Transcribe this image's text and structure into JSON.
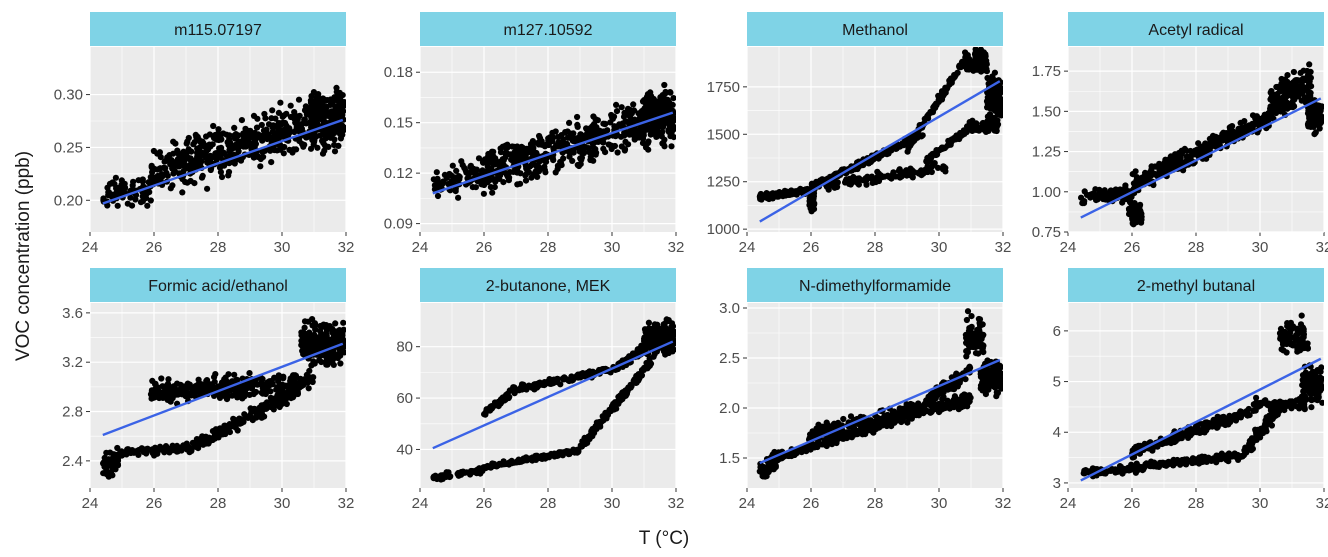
{
  "figure": {
    "ylabel": "VOC concentration (ppb)",
    "xlabel": "T (°C)"
  },
  "colors": {
    "strip": "#7fd3e6",
    "panel_bg": "#ebebeb",
    "grid": "#ffffff",
    "points": "#000000",
    "fit_line": "#3b63e6"
  },
  "chart_data": [
    {
      "type": "scatter",
      "title": "m115.07197",
      "xlim": [
        24,
        32
      ],
      "ylim": [
        0.17,
        0.345
      ],
      "xticks": [
        24,
        26,
        28,
        30,
        32
      ],
      "yticks": [
        0.2,
        0.25,
        0.3
      ],
      "tick_decimals": 2,
      "trend": [
        [
          24.4,
          0.197
        ],
        [
          31.9,
          0.276
        ]
      ],
      "regimes": [
        {
          "x": [
            24.4,
            25.9
          ],
          "slope": 0.006,
          "at_x": 24.4,
          "at_y": 0.203,
          "spread": 0.014,
          "n": 70
        },
        {
          "x": [
            25.9,
            31.0
          ],
          "slope": 0.0095,
          "at_x": 25.9,
          "at_y": 0.225,
          "spread": 0.021,
          "n": 450
        },
        {
          "x": [
            30.9,
            31.95
          ],
          "slope": 0.005,
          "at_x": 30.9,
          "at_y": 0.275,
          "spread": 0.024,
          "n": 230
        }
      ]
    },
    {
      "type": "scatter",
      "title": "m127.10592",
      "xlim": [
        24,
        32
      ],
      "ylim": [
        0.085,
        0.195
      ],
      "xticks": [
        24,
        26,
        28,
        30,
        32
      ],
      "yticks": [
        0.09,
        0.12,
        0.15,
        0.18
      ],
      "tick_decimals": 2,
      "trend": [
        [
          24.4,
          0.108
        ],
        [
          31.9,
          0.156
        ]
      ],
      "regimes": [
        {
          "x": [
            24.4,
            25.9
          ],
          "slope": 0.006,
          "at_x": 24.4,
          "at_y": 0.112,
          "spread": 0.008,
          "n": 70
        },
        {
          "x": [
            25.9,
            31.0
          ],
          "slope": 0.0058,
          "at_x": 25.9,
          "at_y": 0.12,
          "spread": 0.012,
          "n": 450
        },
        {
          "x": [
            30.9,
            31.95
          ],
          "slope": 0.003,
          "at_x": 30.9,
          "at_y": 0.152,
          "spread": 0.014,
          "n": 230
        }
      ]
    },
    {
      "type": "scatter",
      "title": "Methanol",
      "xlim": [
        24,
        32
      ],
      "ylim": [
        985,
        1960
      ],
      "xticks": [
        24,
        26,
        28,
        30,
        32
      ],
      "yticks": [
        1000,
        1250,
        1500,
        1750
      ],
      "tick_decimals": 0,
      "trend": [
        [
          24.4,
          1040
        ],
        [
          31.9,
          1780
        ]
      ],
      "regimes": [
        {
          "x": [
            24.4,
            26.0
          ],
          "slope": 20,
          "at_x": 24.4,
          "at_y": 1170,
          "spread": 12,
          "n": 150
        },
        {
          "x": [
            25.95,
            26.1
          ],
          "slope": 0,
          "at_x": 26.0,
          "at_y": 1150,
          "spread": 45,
          "n": 50
        },
        {
          "x": [
            26.0,
            29.5
          ],
          "slope": 80,
          "at_x": 26.0,
          "at_y": 1220,
          "spread": 15,
          "n": 220
        },
        {
          "x": [
            29.0,
            30.8
          ],
          "slope": 260,
          "at_x": 29.0,
          "at_y": 1420,
          "spread": 20,
          "n": 110
        },
        {
          "x": [
            30.8,
            31.5
          ],
          "slope": 0,
          "at_x": 30.8,
          "at_y": 1880,
          "spread": 50,
          "n": 80
        },
        {
          "x": [
            26.4,
            30.2
          ],
          "slope": 25,
          "at_x": 26.4,
          "at_y": 1230,
          "spread": 25,
          "n": 120
        },
        {
          "x": [
            29.6,
            31.0
          ],
          "slope": 130,
          "at_x": 29.6,
          "at_y": 1360,
          "spread": 15,
          "n": 80
        },
        {
          "x": [
            30.9,
            31.9
          ],
          "slope": 0,
          "at_x": 30.9,
          "at_y": 1540,
          "spread": 25,
          "n": 60
        },
        {
          "x": [
            31.5,
            31.95
          ],
          "slope": 0,
          "at_x": 31.5,
          "at_y": 1680,
          "spread": 110,
          "n": 130
        }
      ]
    },
    {
      "type": "scatter",
      "title": "Acetyl radical",
      "xlim": [
        24,
        32
      ],
      "ylim": [
        0.75,
        1.9
      ],
      "xticks": [
        24,
        26,
        28,
        30,
        32
      ],
      "yticks": [
        0.75,
        1.0,
        1.25,
        1.5,
        1.75
      ],
      "tick_decimals": 2,
      "trend": [
        [
          24.4,
          0.84
        ],
        [
          31.9,
          1.58
        ]
      ],
      "regimes": [
        {
          "x": [
            24.4,
            26.0
          ],
          "slope": 0.02,
          "at_x": 24.4,
          "at_y": 0.96,
          "spread": 0.04,
          "n": 80
        },
        {
          "x": [
            25.9,
            26.3
          ],
          "slope": 0,
          "at_x": 25.9,
          "at_y": 0.88,
          "spread": 0.07,
          "n": 60
        },
        {
          "x": [
            26.0,
            30.3
          ],
          "slope": 0.095,
          "at_x": 26.0,
          "at_y": 1.05,
          "spread": 0.05,
          "n": 350
        },
        {
          "x": [
            30.3,
            31.6
          ],
          "slope": 0.1,
          "at_x": 30.3,
          "at_y": 1.55,
          "spread": 0.09,
          "n": 180
        },
        {
          "x": [
            31.5,
            31.95
          ],
          "slope": 0,
          "at_x": 31.5,
          "at_y": 1.48,
          "spread": 0.09,
          "n": 120
        }
      ]
    },
    {
      "type": "scatter",
      "title": "Formic acid/ethanol",
      "xlim": [
        24,
        32
      ],
      "ylim": [
        2.18,
        3.68
      ],
      "xticks": [
        24,
        26,
        28,
        30,
        32
      ],
      "yticks": [
        2.4,
        2.8,
        3.2,
        3.6
      ],
      "tick_decimals": 1,
      "trend": [
        [
          24.4,
          2.61
        ],
        [
          31.9,
          3.35
        ]
      ],
      "regimes": [
        {
          "x": [
            24.4,
            24.9
          ],
          "slope": 0.1,
          "at_x": 24.4,
          "at_y": 2.36,
          "spread": 0.09,
          "n": 50
        },
        {
          "x": [
            24.9,
            27.0
          ],
          "slope": 0.02,
          "at_x": 24.9,
          "at_y": 2.46,
          "spread": 0.03,
          "n": 70
        },
        {
          "x": [
            27.0,
            30.5
          ],
          "slope": 0.14,
          "at_x": 27.0,
          "at_y": 2.48,
          "spread": 0.05,
          "n": 200
        },
        {
          "x": [
            25.9,
            31.0
          ],
          "slope": 0.02,
          "at_x": 25.9,
          "at_y": 2.95,
          "spread": 0.08,
          "n": 350
        },
        {
          "x": [
            30.6,
            31.95
          ],
          "slope": 0,
          "at_x": 30.6,
          "at_y": 3.35,
          "spread": 0.14,
          "n": 250
        }
      ]
    },
    {
      "type": "scatter",
      "title": "2-butanone, MEK",
      "xlim": [
        24,
        32
      ],
      "ylim": [
        25,
        97
      ],
      "xticks": [
        24,
        26,
        28,
        30,
        32
      ],
      "yticks": [
        40,
        60,
        80
      ],
      "tick_decimals": 0,
      "trend": [
        [
          24.4,
          40.5
        ],
        [
          31.9,
          82
        ]
      ],
      "regimes": [
        {
          "x": [
            24.4,
            26.0
          ],
          "slope": 2,
          "at_x": 24.4,
          "at_y": 29,
          "spread": 1.2,
          "n": 60
        },
        {
          "x": [
            26.0,
            29.0
          ],
          "slope": 2.2,
          "at_x": 26.0,
          "at_y": 33,
          "spread": 0.8,
          "n": 120
        },
        {
          "x": [
            29.0,
            31.3
          ],
          "slope": 15,
          "at_x": 29.0,
          "at_y": 41,
          "spread": 1.5,
          "n": 150
        },
        {
          "x": [
            26.0,
            26.8
          ],
          "slope": 9,
          "at_x": 26.0,
          "at_y": 54,
          "spread": 1.2,
          "n": 50
        },
        {
          "x": [
            26.8,
            30.2
          ],
          "slope": 2.5,
          "at_x": 26.8,
          "at_y": 63,
          "spread": 1.2,
          "n": 140
        },
        {
          "x": [
            30.2,
            31.0
          ],
          "slope": 9,
          "at_x": 30.2,
          "at_y": 72,
          "spread": 1.5,
          "n": 60
        },
        {
          "x": [
            31.0,
            31.95
          ],
          "slope": 0,
          "at_x": 31.0,
          "at_y": 83,
          "spread": 5.5,
          "n": 220
        }
      ]
    },
    {
      "type": "scatter",
      "title": "N-dimethylformamide",
      "xlim": [
        24,
        32
      ],
      "ylim": [
        1.2,
        3.05
      ],
      "xticks": [
        24,
        26,
        28,
        30,
        32
      ],
      "yticks": [
        1.5,
        2.0,
        2.5,
        3.0
      ],
      "tick_decimals": 1,
      "trend": [
        [
          24.4,
          1.45
        ],
        [
          31.9,
          2.48
        ]
      ],
      "regimes": [
        {
          "x": [
            24.4,
            24.9
          ],
          "slope": 0.3,
          "at_x": 24.4,
          "at_y": 1.35,
          "spread": 0.08,
          "n": 50
        },
        {
          "x": [
            24.9,
            28.8
          ],
          "slope": 0.1,
          "at_x": 24.9,
          "at_y": 1.5,
          "spread": 0.04,
          "n": 170
        },
        {
          "x": [
            28.8,
            31.0
          ],
          "slope": 0.22,
          "at_x": 28.8,
          "at_y": 1.9,
          "spread": 0.07,
          "n": 120
        },
        {
          "x": [
            25.9,
            31.0
          ],
          "slope": 0.065,
          "at_x": 25.9,
          "at_y": 1.75,
          "spread": 0.07,
          "n": 250
        },
        {
          "x": [
            30.8,
            31.4
          ],
          "slope": 0,
          "at_x": 30.8,
          "at_y": 2.7,
          "spread": 0.18,
          "n": 80
        },
        {
          "x": [
            31.3,
            31.95
          ],
          "slope": 0,
          "at_x": 31.3,
          "at_y": 2.3,
          "spread": 0.14,
          "n": 150
        }
      ]
    },
    {
      "type": "scatter",
      "title": "2-methyl butanal",
      "xlim": [
        24,
        32
      ],
      "ylim": [
        2.9,
        6.55
      ],
      "xticks": [
        24,
        26,
        28,
        30,
        32
      ],
      "yticks": [
        3,
        4,
        5,
        6
      ],
      "tick_decimals": 0,
      "trend": [
        [
          24.4,
          3.05
        ],
        [
          31.9,
          5.45
        ]
      ],
      "regimes": [
        {
          "x": [
            24.4,
            26.4
          ],
          "slope": 0.05,
          "at_x": 24.4,
          "at_y": 3.2,
          "spread": 0.07,
          "n": 80
        },
        {
          "x": [
            26.4,
            29.5
          ],
          "slope": 0.06,
          "at_x": 26.4,
          "at_y": 3.35,
          "spread": 0.07,
          "n": 130
        },
        {
          "x": [
            29.5,
            30.6
          ],
          "slope": 0.8,
          "at_x": 29.5,
          "at_y": 3.6,
          "spread": 0.12,
          "n": 80
        },
        {
          "x": [
            30.6,
            31.5
          ],
          "slope": 0,
          "at_x": 30.6,
          "at_y": 5.85,
          "spread": 0.3,
          "n": 80
        },
        {
          "x": [
            26.0,
            29.8
          ],
          "slope": 0.22,
          "at_x": 26.0,
          "at_y": 3.6,
          "spread": 0.1,
          "n": 200
        },
        {
          "x": [
            29.8,
            31.4
          ],
          "slope": 0,
          "at_x": 29.8,
          "at_y": 4.55,
          "spread": 0.1,
          "n": 80
        },
        {
          "x": [
            31.3,
            31.95
          ],
          "slope": 0,
          "at_x": 31.3,
          "at_y": 4.95,
          "spread": 0.3,
          "n": 120
        }
      ]
    }
  ]
}
